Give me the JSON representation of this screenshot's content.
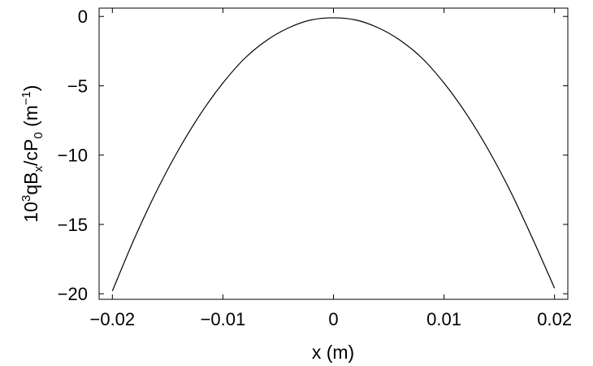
{
  "chart_data": {
    "type": "line",
    "title": "",
    "xlabel": "x (m)",
    "ylabel_parts": {
      "p1": "10",
      "p2": "3",
      "p3": "qB",
      "p4": "x",
      "p5": "/cP",
      "p6": "0",
      "p7": " (m",
      "p8": "−1",
      "p9": ")"
    },
    "xlim": [
      -0.0212,
      0.0212
    ],
    "ylim": [
      -20.4,
      0.6
    ],
    "x_ticks": [
      -0.02,
      -0.01,
      0,
      0.01,
      0.02
    ],
    "x_tick_labels": [
      "−0.02",
      "−0.01",
      "0",
      "0.01",
      "0.02"
    ],
    "y_ticks": [
      0,
      -5,
      -10,
      -15,
      -20
    ],
    "y_tick_labels": [
      "0",
      "−5",
      "−10",
      "−15",
      "−20"
    ],
    "grid": false,
    "series": [
      {
        "color": "#000000",
        "x": [
          -0.02,
          -0.018,
          -0.016,
          -0.014,
          -0.012,
          -0.01,
          -0.008,
          -0.006,
          -0.004,
          -0.002,
          0,
          0.002,
          0.004,
          0.006,
          0.008,
          0.01,
          0.012,
          0.014,
          0.016,
          0.018,
          0.02
        ],
        "y": [
          -19.8,
          -16.0,
          -12.6,
          -9.6,
          -7.0,
          -4.8,
          -3.0,
          -1.7,
          -0.8,
          -0.25,
          -0.1,
          -0.25,
          -0.8,
          -1.7,
          -3.0,
          -4.8,
          -7.0,
          -9.6,
          -12.6,
          -16.0,
          -19.6
        ]
      }
    ]
  }
}
